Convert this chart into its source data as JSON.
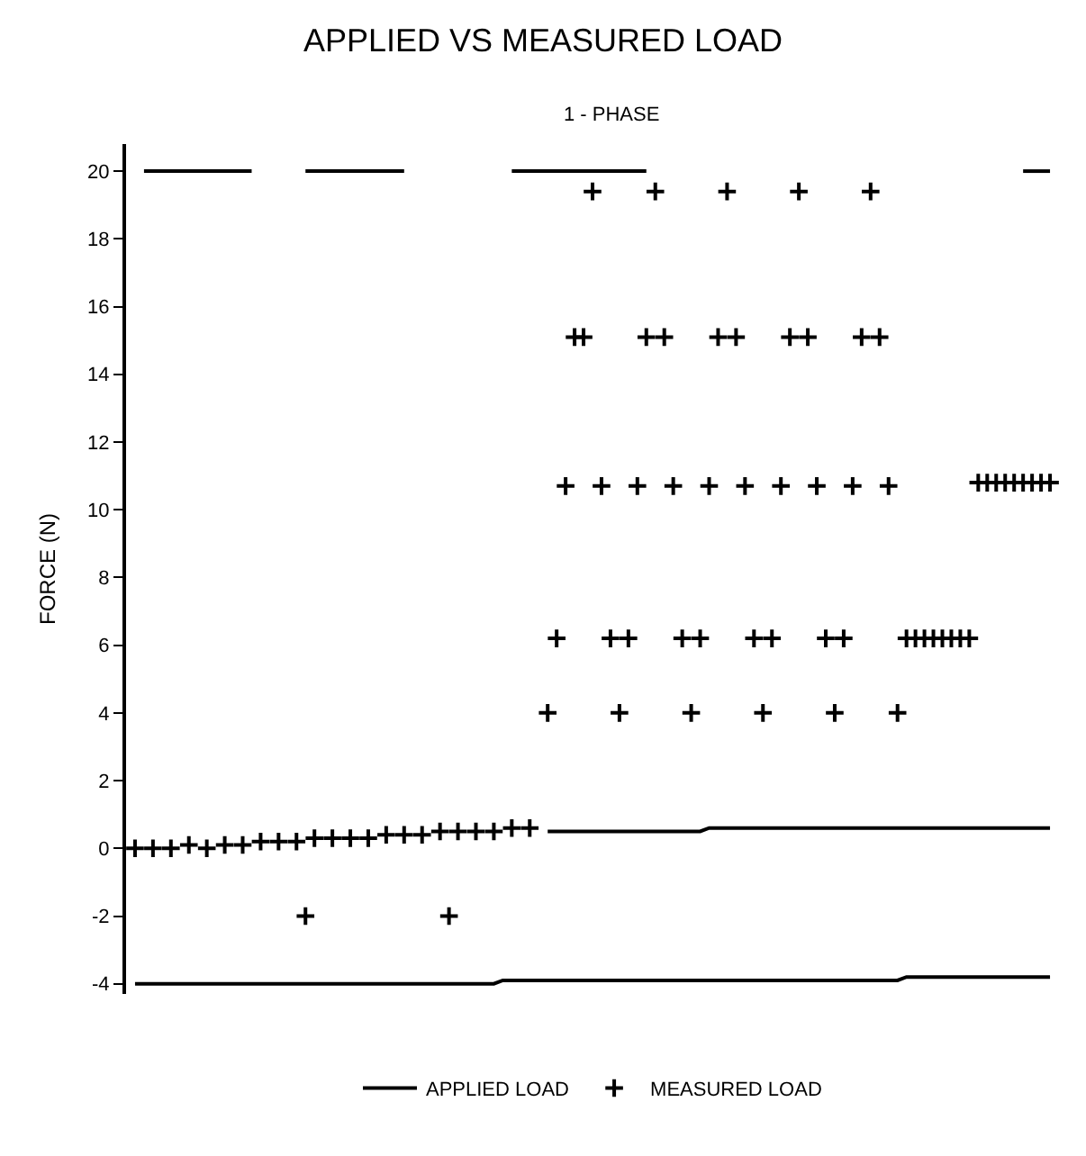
{
  "chart_data": {
    "type": "line",
    "title": "APPLIED VS MEASURED LOAD",
    "ylabel": "FORCE (N)",
    "annotations": [
      "1 - PHASE"
    ],
    "categories": [
      null,
      null,
      null,
      null,
      null,
      null,
      null,
      null,
      null,
      null,
      null,
      null,
      null,
      null,
      null,
      null,
      null,
      null,
      null,
      null,
      null,
      null,
      null,
      null,
      null,
      null,
      null,
      null,
      null,
      null,
      null,
      null,
      null,
      null,
      null,
      null,
      null,
      null,
      null,
      null,
      null,
      null,
      null,
      null,
      null,
      null,
      null,
      null,
      null,
      null,
      null,
      null,
      null,
      null,
      null,
      null,
      null,
      null,
      null,
      null,
      null,
      null,
      null,
      null,
      null,
      null,
      null,
      null,
      null,
      null,
      null,
      null,
      null,
      null,
      null,
      null,
      null,
      null,
      null,
      null,
      null,
      null,
      null,
      null,
      null,
      null,
      null,
      null,
      null,
      null,
      null,
      null,
      null,
      null,
      null,
      null,
      null,
      null,
      null,
      null,
      null,
      null,
      null
    ],
    "series": [
      {
        "name": "APPLIED LOAD",
        "marker": "none",
        "line_style": "solid",
        "color": "#000000",
        "values": [
          null,
          20,
          20,
          20,
          20,
          20,
          20,
          20,
          20,
          20,
          20,
          20,
          20,
          20,
          null,
          null,
          null,
          null,
          null,
          20,
          20,
          20,
          20,
          20,
          20,
          20,
          20,
          20,
          20,
          20,
          20,
          null,
          null,
          null,
          null,
          null,
          null,
          null,
          null,
          null,
          null,
          null,
          20,
          20,
          20,
          20,
          20,
          20,
          20,
          20,
          20,
          20,
          20,
          20,
          20,
          20,
          20,
          20,
          null,
          null,
          null,
          null,
          null,
          null,
          null,
          null,
          null,
          null,
          null,
          null,
          null,
          null,
          null,
          null,
          null,
          null,
          null,
          null,
          null,
          null,
          null,
          null,
          null,
          null,
          null,
          null,
          null,
          null,
          null,
          null,
          null,
          null,
          null,
          null,
          null,
          null,
          null,
          null,
          null,
          20,
          20,
          20,
          20
        ]
      },
      {
        "marker": "none",
        "line_style": "solid",
        "color": "#000000",
        "values": [
          -4,
          -4,
          -4,
          -4,
          -4,
          -4,
          -4,
          -4,
          -4,
          -4,
          -4,
          -4,
          -4,
          -4,
          -4,
          -4,
          -4,
          -4,
          -4,
          -4,
          -4,
          -4,
          -4,
          -4,
          -4,
          -4,
          -4,
          -4,
          -4,
          -4,
          -4,
          -4,
          -4,
          -4,
          -4,
          -4,
          -4,
          -4,
          -4,
          -4,
          -4,
          -3.9,
          -3.9,
          -3.9,
          -3.9,
          -3.9,
          -3.9,
          -3.9,
          -3.9,
          -3.9,
          -3.9,
          -3.9,
          -3.9,
          -3.9,
          -3.9,
          -3.9,
          -3.9,
          -3.9,
          -3.9,
          -3.9,
          -3.9,
          -3.9,
          -3.9,
          -3.9,
          -3.9,
          -3.9,
          -3.9,
          -3.9,
          -3.9,
          -3.9,
          -3.9,
          -3.9,
          -3.9,
          -3.9,
          -3.9,
          -3.9,
          -3.9,
          -3.9,
          -3.9,
          -3.9,
          -3.9,
          -3.9,
          -3.9,
          -3.9,
          -3.9,
          -3.9,
          -3.8,
          -3.8,
          -3.8,
          -3.8,
          -3.8,
          -3.8,
          -3.8,
          -3.8,
          -3.8,
          -3.8,
          -3.8,
          -3.8,
          -3.8,
          -3.8,
          -3.8,
          -3.8,
          -3.8
        ]
      },
      {
        "marker": "none",
        "line_style": "solid",
        "color": "#000000",
        "values": [
          null,
          null,
          null,
          null,
          null,
          null,
          null,
          null,
          null,
          null,
          null,
          null,
          null,
          null,
          null,
          null,
          null,
          null,
          null,
          null,
          null,
          null,
          null,
          null,
          null,
          null,
          null,
          null,
          null,
          null,
          null,
          null,
          null,
          null,
          null,
          null,
          null,
          null,
          null,
          null,
          null,
          null,
          null,
          null,
          null,
          null,
          0.5,
          0.5,
          0.5,
          0.5,
          0.5,
          0.5,
          0.5,
          0.5,
          0.5,
          0.5,
          0.5,
          0.5,
          0.5,
          0.5,
          0.5,
          0.5,
          0.5,
          0.5,
          0.6,
          0.6,
          0.6,
          0.6,
          0.6,
          0.6,
          0.6,
          0.6,
          0.6,
          0.6,
          0.6,
          0.6,
          0.6,
          0.6,
          0.6,
          0.6,
          0.6,
          0.6,
          0.6,
          0.6,
          0.6,
          0.6,
          0.6,
          0.6,
          0.6,
          0.6,
          0.6,
          0.6,
          0.6,
          0.6,
          0.6,
          0.6,
          0.6,
          0.6,
          0.6,
          0.6,
          0.6,
          0.6,
          0.6
        ]
      },
      {
        "name": "MEASURED LOAD",
        "type": "scatter",
        "marker": "cross",
        "color": "#000000",
        "values": [
          0,
          null,
          0,
          null,
          0,
          null,
          0.1,
          null,
          0,
          null,
          0.1,
          null,
          0.1,
          null,
          0.2,
          null,
          0.2,
          null,
          0.2,
          -2,
          0.3,
          null,
          0.3,
          null,
          0.3,
          null,
          0.3,
          null,
          0.4,
          null,
          0.4,
          null,
          0.4,
          null,
          0.5,
          -2,
          0.5,
          null,
          0.5,
          null,
          0.5,
          null,
          0.6,
          null,
          0.6,
          null,
          4,
          6.2,
          10.7,
          15.1,
          15.1,
          19.4,
          10.7,
          6.2,
          4,
          6.2,
          10.7,
          15.1,
          19.4,
          15.1,
          10.7,
          6.2,
          4,
          6.2,
          10.7,
          15.1,
          19.4,
          15.1,
          10.7,
          6.2,
          4,
          6.2,
          10.7,
          15.1,
          19.4,
          15.1,
          10.7,
          6.2,
          4,
          6.2,
          10.7,
          15.1,
          19.4,
          15.1,
          10.7,
          4,
          6.2,
          6.2,
          6.2,
          6.2,
          6.2,
          6.2,
          6.2,
          6.2,
          10.8,
          10.8,
          10.8,
          10.8,
          10.8,
          10.8,
          10.8,
          10.8,
          10.8
        ]
      }
    ],
    "ylim": [
      -4.3,
      20.8
    ],
    "yticks": [
      -4,
      -2,
      0,
      2,
      4,
      6,
      8,
      10,
      12,
      14,
      16,
      18,
      20
    ],
    "tick_labels": "y",
    "legend": "bottom"
  }
}
